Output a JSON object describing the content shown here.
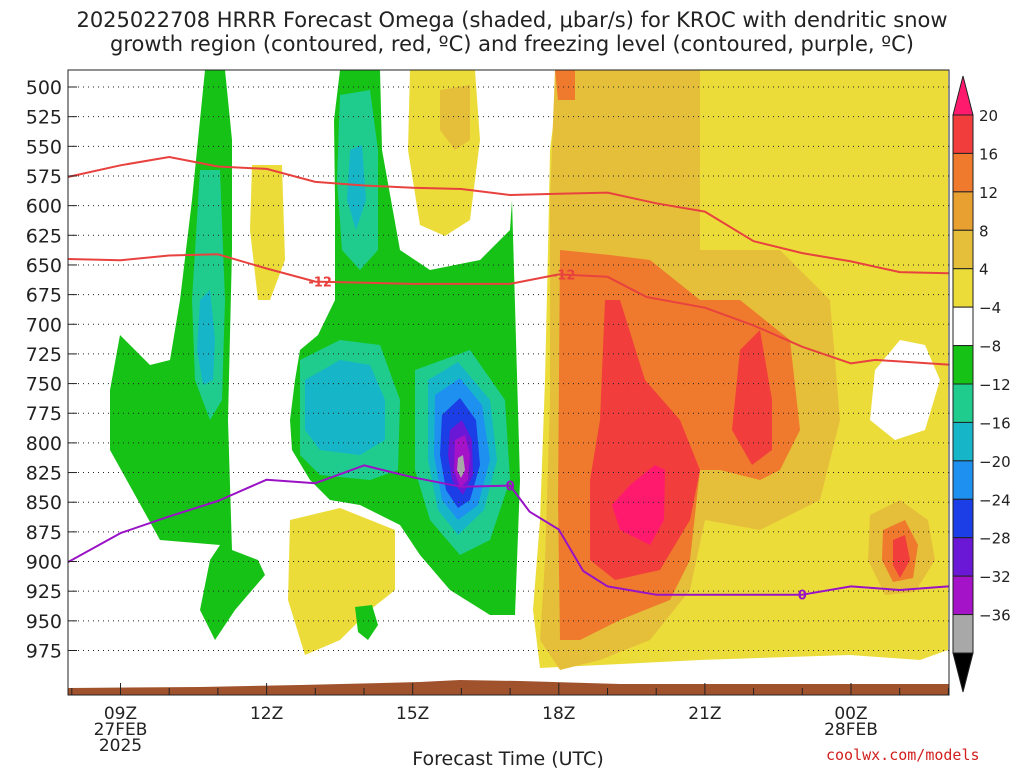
{
  "header": {
    "title_line1": "2025022708 HRRR Forecast Omega (shaded, μbar/s) for KROC with dendritic snow",
    "title_line2": "growth region (contoured, red, ºC) and freezing level (contoured, purple, ºC)"
  },
  "footer": {
    "credit": "coolwx.com/models"
  },
  "chart_data": {
    "type": "time-height cross section",
    "title": "2025022708 HRRR Forecast Omega (shaded, μbar/s) for KROC with dendritic snow growth region (contoured, red, ºC) and freezing level (contoured, purple, ºC)",
    "xlabel": "Forecast Time (UTC)",
    "ylabel": "",
    "x_range_hours_utc_27feb": [
      7.9,
      26.0
    ],
    "y_range_hpa": [
      492,
      985
    ],
    "y_scale": "pressure (inverted)",
    "grid": true,
    "y_ticks": [
      500,
      525,
      550,
      575,
      600,
      625,
      650,
      675,
      700,
      725,
      750,
      775,
      800,
      825,
      850,
      875,
      900,
      925,
      950,
      975
    ],
    "x_ticks": [
      {
        "hour": 9,
        "labels": [
          "09Z",
          "27FEB",
          "2025"
        ]
      },
      {
        "hour": 12,
        "labels": [
          "12Z"
        ]
      },
      {
        "hour": 15,
        "labels": [
          "15Z"
        ]
      },
      {
        "hour": 18,
        "labels": [
          "18Z"
        ]
      },
      {
        "hour": 21,
        "labels": [
          "21Z"
        ]
      },
      {
        "hour": 24,
        "labels": [
          "00Z",
          "28FEB"
        ]
      }
    ],
    "colorbar": {
      "labels": [
        "20",
        "16",
        "12",
        "8",
        "4",
        "−4",
        "−8",
        "−12",
        "−16",
        "−20",
        "−24",
        "−28",
        "−32",
        "−36"
      ],
      "colors_top_to_bottom": [
        "#ff1a6e",
        "#f23d3d",
        "#ef7a2d",
        "#e8a030",
        "#e6bf3a",
        "#ecdc3a",
        "#ffffff",
        "#16c216",
        "#1fcc8e",
        "#16b6c8",
        "#1e90f0",
        "#1b3ee6",
        "#6a17d6",
        "#a513c8",
        "#a8a8a8",
        "#000000"
      ]
    },
    "contours": [
      {
        "name": "-12",
        "color": "#e8423f",
        "label_positions": [
          [
            13.1,
            664
          ],
          [
            18.1,
            658
          ]
        ],
        "points": [
          [
            7.9,
            645
          ],
          [
            9.0,
            646
          ],
          [
            10.0,
            642
          ],
          [
            11.0,
            641
          ],
          [
            12.0,
            653
          ],
          [
            13.0,
            664
          ],
          [
            15.0,
            666
          ],
          [
            17.0,
            666
          ],
          [
            18.0,
            658
          ],
          [
            19.0,
            660
          ],
          [
            19.8,
            677
          ],
          [
            21.0,
            686
          ],
          [
            22.0,
            701
          ],
          [
            23.0,
            719
          ],
          [
            24.0,
            733
          ],
          [
            24.5,
            730
          ],
          [
            26.0,
            734
          ]
        ]
      },
      {
        "name": "",
        "color": "#e8423f",
        "label_positions": [],
        "points": [
          [
            7.9,
            576
          ],
          [
            9.0,
            566
          ],
          [
            10.0,
            559
          ],
          [
            11.0,
            567
          ],
          [
            12.0,
            569
          ],
          [
            13.0,
            580
          ],
          [
            14.0,
            583
          ],
          [
            15.0,
            585
          ],
          [
            16.0,
            586
          ],
          [
            17.0,
            591
          ],
          [
            18.0,
            590
          ],
          [
            19.0,
            589
          ],
          [
            20.0,
            598
          ],
          [
            21.0,
            605
          ],
          [
            22.0,
            630
          ],
          [
            23.0,
            640
          ],
          [
            24.0,
            647
          ],
          [
            25.0,
            656
          ],
          [
            26.0,
            657
          ]
        ]
      },
      {
        "name": "0",
        "color": "#9a12c6",
        "label_positions": [
          [
            17.0,
            836
          ],
          [
            23.0,
            928
          ]
        ],
        "points": [
          [
            7.9,
            901
          ],
          [
            9.0,
            876
          ],
          [
            10.0,
            862
          ],
          [
            11.0,
            849
          ],
          [
            12.0,
            831
          ],
          [
            13.0,
            834
          ],
          [
            14.0,
            819
          ],
          [
            15.0,
            829
          ],
          [
            16.0,
            837
          ],
          [
            17.0,
            836
          ],
          [
            17.4,
            858
          ],
          [
            18.0,
            873
          ],
          [
            18.5,
            908
          ],
          [
            19.0,
            921
          ],
          [
            20.0,
            928
          ],
          [
            21.0,
            928
          ],
          [
            22.0,
            928
          ],
          [
            23.0,
            928
          ],
          [
            24.0,
            921
          ],
          [
            25.0,
            924
          ],
          [
            26.0,
            921
          ]
        ]
      }
    ],
    "shaded_regions": [
      {
        "value_band": "-4 to -8",
        "color": "#16c216"
      },
      {
        "value_band": "-8 to -12",
        "color": "#1fcc8e"
      },
      {
        "value_band": "-12 to -16",
        "color": "#16b6c8"
      },
      {
        "value_band": "-16 to -20",
        "color": "#1e90f0"
      },
      {
        "value_band": "-20 to -24",
        "color": "#1b3ee6"
      },
      {
        "value_band": "-24 to -28",
        "color": "#6a17d6"
      },
      {
        "value_band": "-28 to -32",
        "color": "#a513c8"
      },
      {
        "value_band": "-32 to -36",
        "color": "#a8a8a8"
      },
      {
        "value_band": "4 to 8",
        "color": "#ecdc3a"
      },
      {
        "value_band": "8 to 12",
        "color": "#e6bf3a"
      },
      {
        "value_band": "12 to 16",
        "color": "#ef7a2d"
      },
      {
        "value_band": "16 to 20",
        "color": "#f23d3d"
      },
      {
        "value_band": "> 20",
        "color": "#ff1a6e"
      }
    ],
    "terrain_color": "#a0522d"
  }
}
